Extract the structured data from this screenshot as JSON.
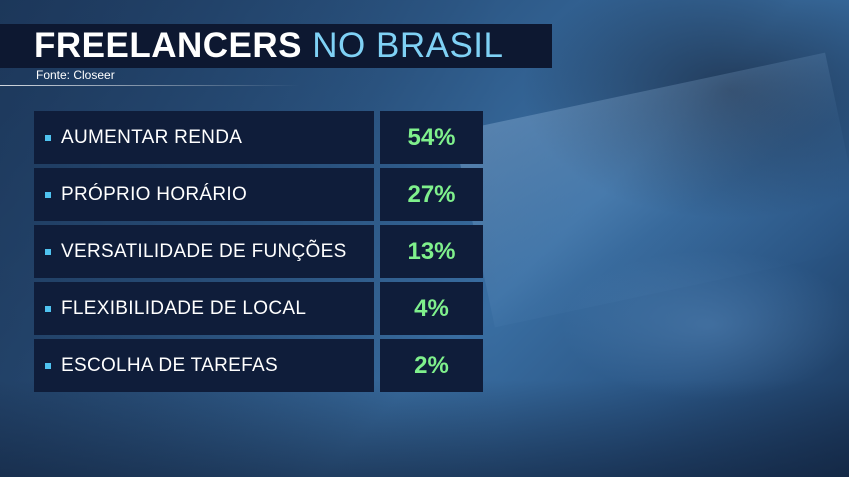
{
  "title": {
    "main": "FREELANCERS",
    "accent": "NO BRASIL"
  },
  "source": "Fonte: Closeer",
  "colors": {
    "title_bar": "#0d1831",
    "title_main": "#ffffff",
    "title_accent": "#7fd1f5",
    "cell_bg": "#0f1d3a",
    "bullet": "#4fc3f0",
    "value_text": "#7ff08c"
  },
  "chart_data": {
    "type": "table",
    "title": "FREELANCERS NO BRASIL",
    "source": "Fonte: Closeer",
    "categories": [
      "AUMENTAR RENDA",
      "PRÓPRIO HORÁRIO",
      "VERSATILIDADE DE FUNÇÕES",
      "FLEXIBILIDADE DE LOCAL",
      "ESCOLHA DE TAREFAS"
    ],
    "values": [
      54,
      27,
      13,
      4,
      2
    ],
    "value_labels": [
      "54%",
      "27%",
      "13%",
      "4%",
      "2%"
    ],
    "unit": "%"
  }
}
